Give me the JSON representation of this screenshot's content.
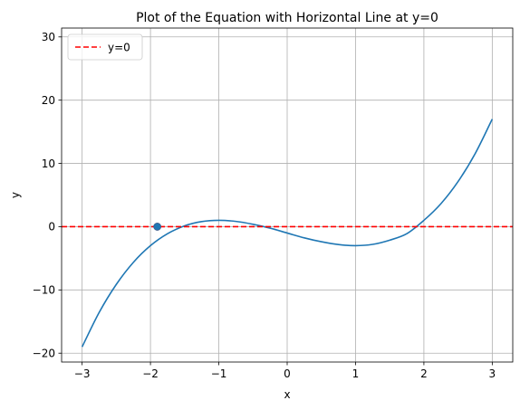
{
  "chart_data": {
    "type": "line",
    "title": "Plot of the Equation with Horizontal Line at y=0",
    "xlabel": "x",
    "ylabel": "y",
    "xlim": [
      -3.3,
      3.3
    ],
    "ylim": [
      -21.4,
      31.4
    ],
    "xticks": [
      -3,
      -2,
      -1,
      0,
      1,
      2,
      3
    ],
    "xtick_labels": [
      "−3",
      "−2",
      "−1",
      "0",
      "1",
      "2",
      "3"
    ],
    "yticks": [
      -20,
      -10,
      0,
      10,
      20,
      30
    ],
    "ytick_labels": [
      "−20",
      "−10",
      "0",
      "10",
      "20",
      "30"
    ],
    "grid": true,
    "legend_position": "top-left",
    "series": [
      {
        "kind": "line",
        "color": "#1f77b4",
        "x": [
          -3.0,
          -2.75,
          -2.5,
          -2.25,
          -2.0,
          -1.75,
          -1.5,
          -1.25,
          -1.0,
          -0.75,
          -0.5,
          -0.25,
          0.0,
          0.25,
          0.5,
          0.75,
          1.0,
          1.25,
          1.5,
          1.75,
          2.0,
          2.25,
          2.5,
          2.75,
          3.0
        ],
        "y": [
          -19.0,
          -13.55,
          -9.13,
          -5.64,
          -3.0,
          -1.11,
          0.13,
          0.8,
          1.0,
          0.83,
          0.38,
          -0.23,
          -1.0,
          -1.77,
          -2.38,
          -2.83,
          -3.0,
          -2.8,
          -2.13,
          -1.11,
          1.0,
          3.64,
          7.13,
          11.55,
          17.0
        ]
      },
      {
        "name": "y=0",
        "kind": "hline",
        "y": 0,
        "color": "#ff0000",
        "dash": "dashed"
      },
      {
        "kind": "point",
        "x": -1.9,
        "y": 0,
        "color": "#1f77b4"
      }
    ]
  }
}
